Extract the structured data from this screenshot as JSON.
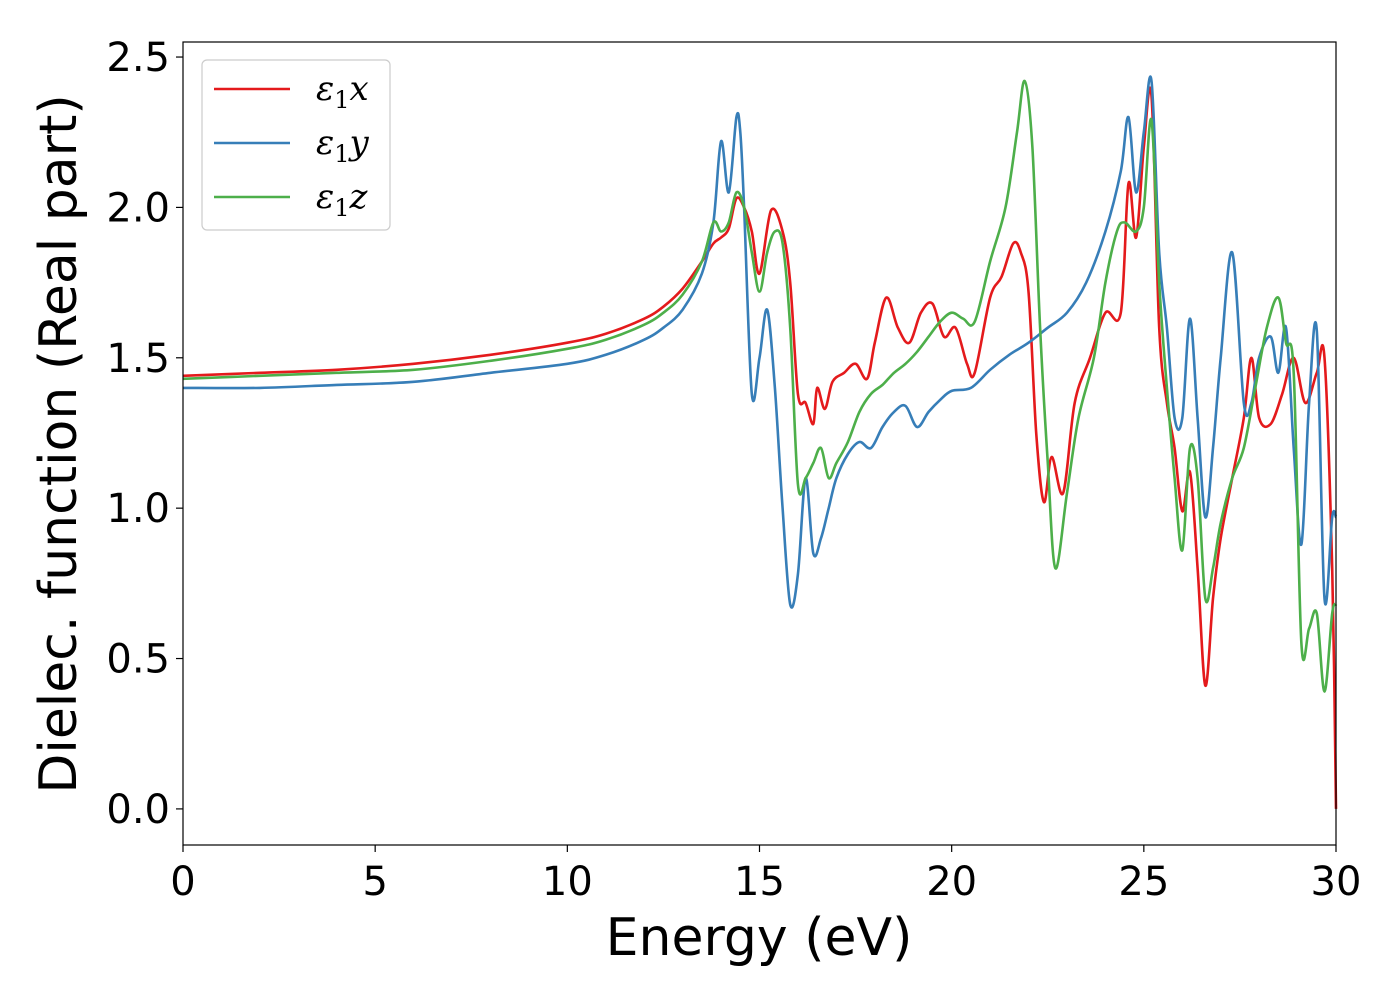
{
  "chart_data": {
    "type": "line",
    "xlabel": "Energy (eV)",
    "ylabel": "Dielec. function (Real part)",
    "xlim": [
      0,
      30
    ],
    "ylim": [
      -0.12,
      2.55
    ],
    "xticks": [
      0,
      5,
      10,
      15,
      20,
      25,
      30
    ],
    "yticks": [
      0.0,
      0.5,
      1.0,
      1.5,
      2.0,
      2.5
    ],
    "xtick_labels": [
      "0",
      "5",
      "10",
      "15",
      "20",
      "25",
      "30"
    ],
    "ytick_labels": [
      "0.0",
      "0.5",
      "1.0",
      "1.5",
      "2.0",
      "2.5"
    ],
    "legend_position": "top-left",
    "grid": false,
    "series": [
      {
        "name": "ε1x",
        "symbol": "ε",
        "subscript": "1",
        "suffix": "x",
        "color": "#e41a1c",
        "x": [
          0,
          2,
          4,
          6,
          8,
          10,
          11,
          12,
          12.5,
          13,
          13.5,
          13.8,
          14,
          14.2,
          14.4,
          14.6,
          14.8,
          15,
          15.3,
          15.6,
          15.8,
          16,
          16.2,
          16.4,
          16.5,
          16.7,
          16.9,
          17.2,
          17.5,
          17.8,
          18,
          18.3,
          18.6,
          18.9,
          19.2,
          19.5,
          19.8,
          20.1,
          20.4,
          20.6,
          21,
          21.3,
          21.6,
          21.8,
          22,
          22.2,
          22.4,
          22.6,
          22.9,
          23.2,
          23.6,
          24,
          24.4,
          24.6,
          24.8,
          25,
          25.2,
          25.4,
          25.6,
          25.8,
          26,
          26.2,
          26.4,
          26.6,
          26.8,
          27,
          27.3,
          27.6,
          27.8,
          28,
          28.3,
          28.6,
          28.9,
          29.2,
          29.5,
          29.7,
          29.9,
          30
        ],
        "y": [
          1.44,
          1.45,
          1.46,
          1.48,
          1.51,
          1.55,
          1.58,
          1.63,
          1.67,
          1.73,
          1.82,
          1.88,
          1.9,
          1.93,
          2.03,
          2.0,
          1.92,
          1.78,
          1.99,
          1.92,
          1.75,
          1.38,
          1.35,
          1.28,
          1.4,
          1.33,
          1.42,
          1.45,
          1.48,
          1.43,
          1.55,
          1.7,
          1.6,
          1.55,
          1.65,
          1.68,
          1.57,
          1.6,
          1.48,
          1.45,
          1.7,
          1.77,
          1.88,
          1.85,
          1.72,
          1.25,
          1.02,
          1.17,
          1.05,
          1.35,
          1.5,
          1.65,
          1.65,
          2.08,
          1.9,
          2.2,
          2.37,
          1.6,
          1.35,
          1.2,
          0.99,
          1.12,
          0.8,
          0.41,
          0.7,
          0.9,
          1.1,
          1.3,
          1.5,
          1.3,
          1.28,
          1.38,
          1.5,
          1.35,
          1.45,
          1.5,
          0.8,
          0.0
        ]
      },
      {
        "name": "ε1y",
        "symbol": "ε",
        "subscript": "1",
        "suffix": "y",
        "color": "#377eb8",
        "x": [
          0,
          2,
          4,
          6,
          8,
          10,
          11,
          12,
          12.5,
          13,
          13.5,
          13.8,
          14,
          14.2,
          14.4,
          14.5,
          14.6,
          14.8,
          15,
          15.2,
          15.4,
          15.6,
          15.8,
          16,
          16.2,
          16.4,
          16.6,
          16.8,
          17,
          17.3,
          17.6,
          17.9,
          18.2,
          18.5,
          18.8,
          19.1,
          19.4,
          19.7,
          20,
          20.5,
          21,
          21.5,
          22,
          22.5,
          23,
          23.5,
          24,
          24.4,
          24.6,
          24.8,
          25,
          25.2,
          25.4,
          25.6,
          25.8,
          26,
          26.2,
          26.4,
          26.6,
          26.8,
          27,
          27.3,
          27.6,
          27.8,
          28,
          28.3,
          28.5,
          28.7,
          28.9,
          29.1,
          29.3,
          29.5,
          29.7,
          29.9,
          30
        ],
        "y": [
          1.4,
          1.4,
          1.41,
          1.42,
          1.45,
          1.48,
          1.51,
          1.56,
          1.6,
          1.66,
          1.78,
          1.95,
          2.22,
          2.05,
          2.3,
          2.25,
          2.0,
          1.38,
          1.5,
          1.66,
          1.4,
          1.0,
          0.68,
          0.78,
          1.1,
          0.85,
          0.9,
          1.0,
          1.1,
          1.18,
          1.22,
          1.2,
          1.27,
          1.32,
          1.34,
          1.27,
          1.32,
          1.36,
          1.39,
          1.4,
          1.46,
          1.51,
          1.55,
          1.6,
          1.65,
          1.75,
          1.92,
          2.12,
          2.3,
          2.05,
          2.25,
          2.42,
          1.85,
          1.6,
          1.3,
          1.3,
          1.63,
          1.3,
          0.97,
          1.2,
          1.5,
          1.85,
          1.35,
          1.35,
          1.5,
          1.57,
          1.45,
          1.6,
          1.2,
          0.88,
          1.35,
          1.59,
          0.7,
          0.97,
          0.97
        ]
      },
      {
        "name": "ε1z",
        "symbol": "ε",
        "subscript": "1",
        "suffix": "z",
        "color": "#4daf4a",
        "x": [
          0,
          2,
          4,
          6,
          8,
          10,
          11,
          12,
          12.5,
          13,
          13.5,
          13.8,
          14,
          14.2,
          14.4,
          14.6,
          14.8,
          15,
          15.2,
          15.4,
          15.6,
          15.8,
          16,
          16.2,
          16.4,
          16.6,
          16.8,
          17,
          17.3,
          17.6,
          17.9,
          18.2,
          18.5,
          18.8,
          19.1,
          19.4,
          19.7,
          20,
          20.3,
          20.6,
          21,
          21.4,
          21.7,
          21.9,
          22.1,
          22.3,
          22.5,
          22.7,
          23,
          23.3,
          23.7,
          24,
          24.3,
          24.5,
          24.8,
          25,
          25.2,
          25.4,
          25.6,
          25.8,
          26,
          26.2,
          26.4,
          26.6,
          26.8,
          27,
          27.3,
          27.6,
          27.9,
          28.2,
          28.5,
          28.7,
          28.9,
          29.1,
          29.3,
          29.5,
          29.7,
          29.9,
          30
        ],
        "y": [
          1.43,
          1.44,
          1.45,
          1.46,
          1.49,
          1.53,
          1.56,
          1.61,
          1.65,
          1.71,
          1.82,
          1.95,
          1.92,
          1.95,
          2.05,
          2.0,
          1.85,
          1.72,
          1.85,
          1.92,
          1.88,
          1.6,
          1.08,
          1.1,
          1.15,
          1.2,
          1.1,
          1.15,
          1.22,
          1.32,
          1.38,
          1.41,
          1.45,
          1.48,
          1.52,
          1.57,
          1.62,
          1.65,
          1.63,
          1.62,
          1.82,
          2.0,
          2.25,
          2.42,
          2.2,
          1.6,
          1.15,
          0.8,
          1.05,
          1.3,
          1.5,
          1.75,
          1.92,
          1.95,
          1.92,
          2.0,
          2.29,
          1.75,
          1.4,
          1.1,
          0.86,
          1.2,
          1.1,
          0.7,
          0.8,
          0.95,
          1.1,
          1.2,
          1.4,
          1.6,
          1.7,
          1.55,
          1.45,
          0.55,
          0.6,
          0.65,
          0.39,
          0.65,
          0.68
        ]
      }
    ]
  }
}
